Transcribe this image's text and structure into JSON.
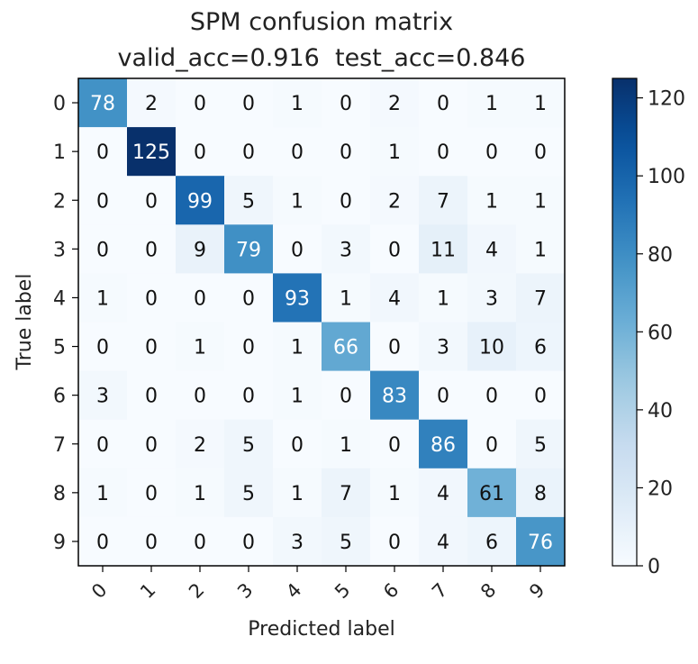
{
  "chart_data": {
    "type": "heatmap",
    "title": "SPM confusion matrix",
    "subtitle": "valid_acc=0.916  test_acc=0.846",
    "xlabel": "Predicted label",
    "ylabel": "True label",
    "x_ticks": [
      "0",
      "1",
      "2",
      "3",
      "4",
      "5",
      "6",
      "7",
      "8",
      "9"
    ],
    "y_ticks": [
      "0",
      "1",
      "2",
      "3",
      "4",
      "5",
      "6",
      "7",
      "8",
      "9"
    ],
    "matrix": [
      [
        78,
        2,
        0,
        0,
        1,
        0,
        2,
        0,
        1,
        1
      ],
      [
        0,
        125,
        0,
        0,
        0,
        0,
        1,
        0,
        0,
        0
      ],
      [
        0,
        0,
        99,
        5,
        1,
        0,
        2,
        7,
        1,
        1
      ],
      [
        0,
        0,
        9,
        79,
        0,
        3,
        0,
        11,
        4,
        1
      ],
      [
        1,
        0,
        0,
        0,
        93,
        1,
        4,
        1,
        3,
        7
      ],
      [
        0,
        0,
        1,
        0,
        1,
        66,
        0,
        3,
        10,
        6
      ],
      [
        3,
        0,
        0,
        0,
        1,
        0,
        83,
        0,
        0,
        0
      ],
      [
        0,
        0,
        2,
        5,
        0,
        1,
        0,
        86,
        0,
        5
      ],
      [
        1,
        0,
        1,
        5,
        1,
        7,
        1,
        4,
        61,
        8
      ],
      [
        0,
        0,
        0,
        0,
        3,
        5,
        0,
        4,
        6,
        76
      ]
    ],
    "colormap": "Blues",
    "vmin": 0,
    "vmax": 125,
    "colorbar_ticks": [
      0,
      20,
      40,
      60,
      80,
      100,
      120
    ]
  }
}
